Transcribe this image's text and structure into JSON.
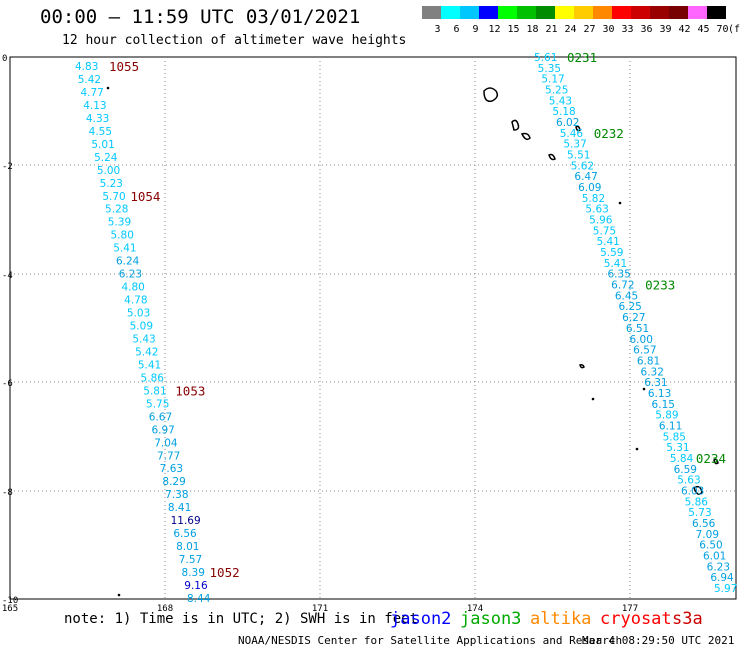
{
  "header": {
    "title": "00:00 – 11:59 UTC 03/01/2021",
    "subtitle": "12 hour collection of altimeter wave heights"
  },
  "legend": {
    "unit": "(ft)",
    "bins": [
      {
        "label": "3",
        "color": "#808080"
      },
      {
        "label": "6",
        "color": "#00ffff"
      },
      {
        "label": "9",
        "color": "#00c8ff"
      },
      {
        "label": "12",
        "color": "#0000ff"
      },
      {
        "label": "15",
        "color": "#00ff00"
      },
      {
        "label": "18",
        "color": "#00c000"
      },
      {
        "label": "21",
        "color": "#008c00"
      },
      {
        "label": "24",
        "color": "#ffff00"
      },
      {
        "label": "27",
        "color": "#ffcc00"
      },
      {
        "label": "30",
        "color": "#ff8800"
      },
      {
        "label": "33",
        "color": "#ff0000"
      },
      {
        "label": "36",
        "color": "#cc0000"
      },
      {
        "label": "39",
        "color": "#990000"
      },
      {
        "label": "42",
        "color": "#770000"
      },
      {
        "label": "45",
        "color": "#ff66ff"
      },
      {
        "label": "70",
        "color": "#000000"
      }
    ]
  },
  "axes": {
    "x_ticks": [
      "165",
      "168",
      "171",
      "174",
      "177"
    ],
    "y_ticks": [
      "0",
      "-2",
      "-4",
      "-6",
      "-8",
      "-10"
    ]
  },
  "tracks": [
    {
      "name": "left",
      "values": [
        {
          "v": "4.83",
          "c": "#00c8ff"
        },
        {
          "v": "5.42",
          "c": "#00c8ff"
        },
        {
          "v": "4.77",
          "c": "#00c8ff"
        },
        {
          "v": "4.13",
          "c": "#00c8ff"
        },
        {
          "v": "4.33",
          "c": "#00c8ff"
        },
        {
          "v": "4.55",
          "c": "#00c8ff"
        },
        {
          "v": "5.01",
          "c": "#00c8ff"
        },
        {
          "v": "5.24",
          "c": "#00c8ff"
        },
        {
          "v": "5.00",
          "c": "#00c8ff"
        },
        {
          "v": "5.23",
          "c": "#00c8ff"
        },
        {
          "v": "5.70",
          "c": "#00c8ff"
        },
        {
          "v": "5.28",
          "c": "#00c8ff"
        },
        {
          "v": "5.39",
          "c": "#00c8ff"
        },
        {
          "v": "5.80",
          "c": "#00c8ff"
        },
        {
          "v": "5.41",
          "c": "#00c8ff"
        },
        {
          "v": "6.24",
          "c": "#00a0e0"
        },
        {
          "v": "6.23",
          "c": "#00a0e0"
        },
        {
          "v": "4.80",
          "c": "#00c8ff"
        },
        {
          "v": "4.78",
          "c": "#00c8ff"
        },
        {
          "v": "5.03",
          "c": "#00c8ff"
        },
        {
          "v": "5.09",
          "c": "#00c8ff"
        },
        {
          "v": "5.43",
          "c": "#00c8ff"
        },
        {
          "v": "5.42",
          "c": "#00c8ff"
        },
        {
          "v": "5.41",
          "c": "#00c8ff"
        },
        {
          "v": "5.86",
          "c": "#00c8ff"
        },
        {
          "v": "5.81",
          "c": "#00c8ff"
        },
        {
          "v": "5.75",
          "c": "#00c8ff"
        },
        {
          "v": "6.67",
          "c": "#00a0e0"
        },
        {
          "v": "6.97",
          "c": "#00a0e0"
        },
        {
          "v": "7.04",
          "c": "#00a0e0"
        },
        {
          "v": "7.77",
          "c": "#00a0e0"
        },
        {
          "v": "7.63",
          "c": "#00a0e0"
        },
        {
          "v": "8.29",
          "c": "#00a0e0"
        },
        {
          "v": "7.38",
          "c": "#00a0e0"
        },
        {
          "v": "8.41",
          "c": "#00a0e0"
        },
        {
          "v": "11.69",
          "c": "#000088"
        },
        {
          "v": "6.56",
          "c": "#00a0e0"
        },
        {
          "v": "8.01",
          "c": "#00a0e0"
        },
        {
          "v": "7.57",
          "c": "#00a0e0"
        },
        {
          "v": "8.39",
          "c": "#00a0e0"
        },
        {
          "v": "9.16",
          "c": "#0000cc"
        },
        {
          "v": "8.44",
          "c": "#00a0e0"
        }
      ],
      "times": [
        {
          "t": "1055",
          "after": 0,
          "color": "#880000"
        },
        {
          "t": "1054",
          "after": 10,
          "color": "#880000"
        },
        {
          "t": "1053",
          "after": 25,
          "color": "#880000"
        },
        {
          "t": "1052",
          "after": 39,
          "color": "#880000"
        }
      ]
    },
    {
      "name": "right",
      "values": [
        {
          "v": "5.61",
          "c": "#00c8ff"
        },
        {
          "v": "5.35",
          "c": "#00c8ff"
        },
        {
          "v": "5.17",
          "c": "#00c8ff"
        },
        {
          "v": "5.25",
          "c": "#00c8ff"
        },
        {
          "v": "5.43",
          "c": "#00c8ff"
        },
        {
          "v": "5.18",
          "c": "#00c8ff"
        },
        {
          "v": "6.02",
          "c": "#00a0e0"
        },
        {
          "v": "5.46",
          "c": "#00c8ff"
        },
        {
          "v": "5.37",
          "c": "#00c8ff"
        },
        {
          "v": "5.51",
          "c": "#00c8ff"
        },
        {
          "v": "5.62",
          "c": "#00c8ff"
        },
        {
          "v": "6.47",
          "c": "#00a0e0"
        },
        {
          "v": "6.09",
          "c": "#00a0e0"
        },
        {
          "v": "5.82",
          "c": "#00c8ff"
        },
        {
          "v": "5.63",
          "c": "#00c8ff"
        },
        {
          "v": "5.96",
          "c": "#00c8ff"
        },
        {
          "v": "5.75",
          "c": "#00c8ff"
        },
        {
          "v": "5.41",
          "c": "#00c8ff"
        },
        {
          "v": "5.59",
          "c": "#00c8ff"
        },
        {
          "v": "5.41",
          "c": "#00c8ff"
        },
        {
          "v": "6.35",
          "c": "#00a0e0"
        },
        {
          "v": "6.72",
          "c": "#00a0e0"
        },
        {
          "v": "6.45",
          "c": "#00a0e0"
        },
        {
          "v": "6.25",
          "c": "#00a0e0"
        },
        {
          "v": "6.27",
          "c": "#00a0e0"
        },
        {
          "v": "6.51",
          "c": "#00a0e0"
        },
        {
          "v": "6.00",
          "c": "#00a0e0"
        },
        {
          "v": "6.57",
          "c": "#00a0e0"
        },
        {
          "v": "6.81",
          "c": "#00a0e0"
        },
        {
          "v": "6.32",
          "c": "#00a0e0"
        },
        {
          "v": "6.31",
          "c": "#00a0e0"
        },
        {
          "v": "6.13",
          "c": "#00a0e0"
        },
        {
          "v": "6.15",
          "c": "#00a0e0"
        },
        {
          "v": "5.89",
          "c": "#00c8ff"
        },
        {
          "v": "6.11",
          "c": "#00a0e0"
        },
        {
          "v": "5.85",
          "c": "#00c8ff"
        },
        {
          "v": "5.31",
          "c": "#00c8ff"
        },
        {
          "v": "5.84",
          "c": "#00c8ff"
        },
        {
          "v": "6.59",
          "c": "#00a0e0"
        },
        {
          "v": "5.63",
          "c": "#00c8ff"
        },
        {
          "v": "6.03",
          "c": "#00a0e0"
        },
        {
          "v": "5.86",
          "c": "#00c8ff"
        },
        {
          "v": "5.73",
          "c": "#00c8ff"
        },
        {
          "v": "6.56",
          "c": "#00a0e0"
        },
        {
          "v": "7.09",
          "c": "#00a0e0"
        },
        {
          "v": "6.50",
          "c": "#00a0e0"
        },
        {
          "v": "6.01",
          "c": "#00a0e0"
        },
        {
          "v": "6.23",
          "c": "#00a0e0"
        },
        {
          "v": "6.94",
          "c": "#00a0e0"
        },
        {
          "v": "5.97",
          "c": "#00c8ff"
        }
      ],
      "times": [
        {
          "t": "0231",
          "after": 0,
          "color": "#008800"
        },
        {
          "t": "0232",
          "after": 7,
          "color": "#008800"
        },
        {
          "t": "0233",
          "after": 21,
          "color": "#008800"
        },
        {
          "t": "0234",
          "after": 37,
          "color": "#008800"
        }
      ]
    }
  ],
  "footer": {
    "note": "note: 1) Time is in UTC; 2) SWH is in feet",
    "satellites": [
      {
        "name": "jason2",
        "color": "#0000ff"
      },
      {
        "name": "jason3",
        "color": "#00aa00"
      },
      {
        "name": "altika",
        "color": "#ff8800"
      },
      {
        "name": "cryosat",
        "color": "#ff0000"
      },
      {
        "name": "s3a",
        "color": "#cc0000"
      }
    ],
    "credit": "NOAA/NESDIS Center for Satellite Applications and Research",
    "timestamp": "Mar  4 08:29:50 UTC 2021"
  }
}
